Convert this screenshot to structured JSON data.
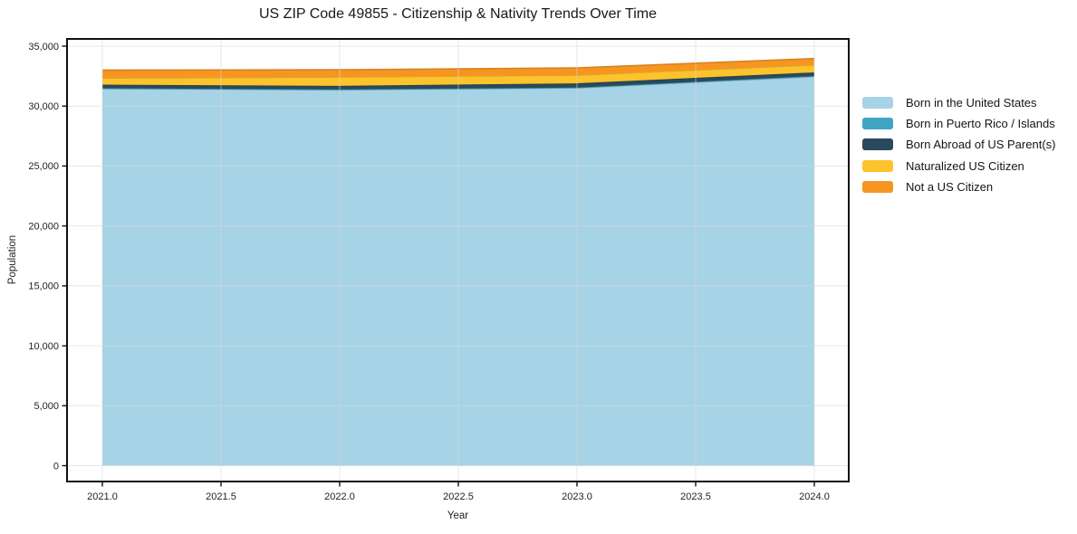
{
  "chart_data": {
    "type": "area",
    "stacked": true,
    "title": "US ZIP Code 49855 - Citizenship & Nativity Trends Over Time",
    "xlabel": "Year",
    "ylabel": "Population",
    "x": [
      2021,
      2022,
      2023,
      2024
    ],
    "series": [
      {
        "name": "Born in the United States",
        "color": "#a7d3e6",
        "values": [
          31450,
          31350,
          31500,
          32450
        ]
      },
      {
        "name": "Born in Puerto Rico / Islands",
        "color": "#3fa5c3",
        "values": [
          40,
          40,
          50,
          60
        ]
      },
      {
        "name": "Born Abroad of US Parent(s)",
        "color": "#29495c",
        "values": [
          300,
          300,
          350,
          300
        ]
      },
      {
        "name": "Naturalized US Citizen",
        "color": "#fcc32c",
        "values": [
          550,
          730,
          680,
          620
        ]
      },
      {
        "name": "Not a US Citizen",
        "color": "#f79522",
        "values": [
          660,
          610,
          600,
          540
        ]
      }
    ],
    "xticks": [
      2021.0,
      2021.5,
      2022.0,
      2022.5,
      2023.0,
      2023.5,
      2024.0
    ],
    "yticks": [
      0,
      5000,
      10000,
      15000,
      20000,
      25000,
      30000,
      35000
    ],
    "xlim": [
      2020.85,
      2024.15
    ],
    "ylim": [
      -1320,
      35600
    ],
    "grid": true,
    "legend_position": "right"
  }
}
